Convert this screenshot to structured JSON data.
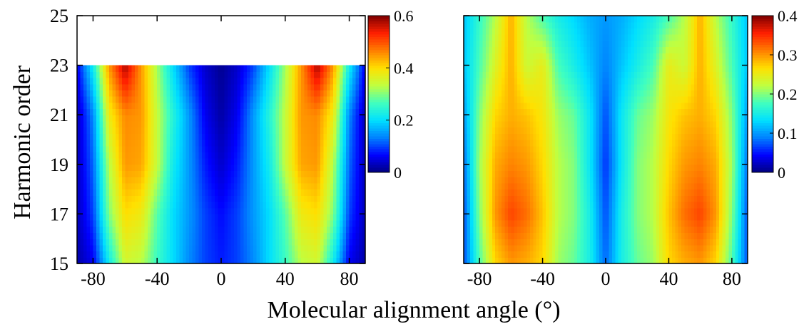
{
  "figure": {
    "ylabel": "Harmonic order",
    "xlabel": "Molecular alignment angle (°)"
  },
  "chart_data": [
    {
      "type": "heatmap",
      "panel": "left",
      "x": [
        -90,
        90
      ],
      "y": [
        15,
        25
      ],
      "xticks": [
        "-80",
        "-40",
        "0",
        "40",
        "80"
      ],
      "yticks": [
        "15",
        "17",
        "19",
        "21",
        "23",
        "25"
      ],
      "data_range_y": [
        15,
        23
      ],
      "colorbar": {
        "ticks": [
          "0",
          "0.2",
          "0.4",
          "0.6"
        ],
        "range": [
          0,
          0.6
        ]
      },
      "colormap": [
        "#00007f",
        "#0000ff",
        "#0080ff",
        "#00e0ff",
        "#40ffbf",
        "#c0ff40",
        "#ffe000",
        "#ff8000",
        "#ff2000",
        "#800000"
      ],
      "profiles": [
        {
          "harmonic": 15,
          "angles": [
            -90,
            -80,
            -70,
            -60,
            -50,
            -40,
            -30,
            -20,
            -10,
            0,
            10,
            20,
            30,
            40,
            50,
            60,
            70,
            80,
            90
          ],
          "values": [
            0.02,
            0.06,
            0.22,
            0.35,
            0.33,
            0.26,
            0.2,
            0.14,
            0.1,
            0.08,
            0.1,
            0.14,
            0.2,
            0.26,
            0.33,
            0.35,
            0.22,
            0.06,
            0.02
          ]
        },
        {
          "harmonic": 17,
          "angles": [
            -90,
            -80,
            -70,
            -60,
            -50,
            -40,
            -30,
            -20,
            -10,
            0,
            10,
            20,
            30,
            40,
            50,
            60,
            70,
            80,
            90
          ],
          "values": [
            0.03,
            0.1,
            0.3,
            0.4,
            0.38,
            0.28,
            0.2,
            0.15,
            0.1,
            0.07,
            0.1,
            0.15,
            0.2,
            0.28,
            0.38,
            0.4,
            0.3,
            0.1,
            0.03
          ]
        },
        {
          "harmonic": 19,
          "angles": [
            -90,
            -80,
            -70,
            -60,
            -50,
            -40,
            -30,
            -20,
            -10,
            0,
            10,
            20,
            30,
            40,
            50,
            60,
            70,
            80,
            90
          ],
          "values": [
            0.03,
            0.12,
            0.33,
            0.45,
            0.44,
            0.34,
            0.22,
            0.15,
            0.08,
            0.04,
            0.08,
            0.15,
            0.22,
            0.34,
            0.44,
            0.45,
            0.33,
            0.12,
            0.03
          ]
        },
        {
          "harmonic": 21,
          "angles": [
            -90,
            -80,
            -70,
            -60,
            -50,
            -40,
            -30,
            -20,
            -10,
            0,
            10,
            20,
            30,
            40,
            50,
            60,
            70,
            80,
            90
          ],
          "values": [
            0.03,
            0.14,
            0.38,
            0.46,
            0.45,
            0.34,
            0.24,
            0.15,
            0.06,
            0.02,
            0.06,
            0.15,
            0.24,
            0.34,
            0.45,
            0.46,
            0.38,
            0.14,
            0.03
          ]
        },
        {
          "harmonic": 23,
          "angles": [
            -90,
            -80,
            -70,
            -60,
            -50,
            -40,
            -30,
            -20,
            -10,
            0,
            10,
            20,
            30,
            40,
            50,
            60,
            70,
            80,
            90
          ],
          "values": [
            0.06,
            0.22,
            0.45,
            0.58,
            0.45,
            0.32,
            0.2,
            0.1,
            0.04,
            0.01,
            0.04,
            0.1,
            0.2,
            0.32,
            0.45,
            0.58,
            0.45,
            0.22,
            0.06
          ]
        }
      ]
    },
    {
      "type": "heatmap",
      "panel": "right",
      "x": [
        -90,
        90
      ],
      "y": [
        15,
        25
      ],
      "xticks": [
        "-80",
        "-40",
        "0",
        "40",
        "80"
      ],
      "data_range_y": [
        15,
        25
      ],
      "colorbar": {
        "ticks": [
          "0",
          "0.1",
          "0.2",
          "0.3",
          "0.4"
        ],
        "range": [
          0,
          0.4
        ]
      },
      "colormap": [
        "#00007f",
        "#0000ff",
        "#0080ff",
        "#00e0ff",
        "#40ffbf",
        "#c0ff40",
        "#ffe000",
        "#ff8000",
        "#ff2000",
        "#800000"
      ],
      "profiles": [
        {
          "harmonic": 15,
          "angles": [
            -90,
            -80,
            -70,
            -60,
            -50,
            -40,
            -30,
            -20,
            -10,
            0,
            10,
            20,
            30,
            40,
            50,
            60,
            70,
            80,
            90
          ],
          "values": [
            0.07,
            0.18,
            0.27,
            0.3,
            0.29,
            0.27,
            0.21,
            0.19,
            0.15,
            0.08,
            0.15,
            0.19,
            0.21,
            0.27,
            0.29,
            0.3,
            0.27,
            0.18,
            0.07
          ]
        },
        {
          "harmonic": 17,
          "angles": [
            -90,
            -80,
            -70,
            -60,
            -50,
            -40,
            -30,
            -20,
            -10,
            0,
            10,
            20,
            30,
            40,
            50,
            60,
            70,
            80,
            90
          ],
          "values": [
            0.07,
            0.2,
            0.3,
            0.34,
            0.32,
            0.28,
            0.22,
            0.2,
            0.15,
            0.07,
            0.15,
            0.2,
            0.22,
            0.28,
            0.32,
            0.34,
            0.3,
            0.2,
            0.07
          ]
        },
        {
          "harmonic": 19,
          "angles": [
            -90,
            -80,
            -70,
            -60,
            -50,
            -40,
            -30,
            -20,
            -10,
            0,
            10,
            20,
            30,
            40,
            50,
            60,
            70,
            80,
            90
          ],
          "values": [
            0.08,
            0.21,
            0.29,
            0.31,
            0.3,
            0.27,
            0.22,
            0.2,
            0.14,
            0.06,
            0.14,
            0.2,
            0.22,
            0.27,
            0.3,
            0.31,
            0.29,
            0.21,
            0.08
          ]
        },
        {
          "harmonic": 21,
          "angles": [
            -90,
            -80,
            -70,
            -60,
            -50,
            -40,
            -30,
            -20,
            -10,
            0,
            10,
            20,
            30,
            40,
            50,
            60,
            70,
            80,
            90
          ],
          "values": [
            0.1,
            0.2,
            0.27,
            0.29,
            0.28,
            0.26,
            0.21,
            0.19,
            0.14,
            0.07,
            0.14,
            0.19,
            0.21,
            0.26,
            0.28,
            0.29,
            0.27,
            0.2,
            0.1
          ]
        },
        {
          "harmonic": 23,
          "angles": [
            -90,
            -80,
            -70,
            -60,
            -50,
            -40,
            -30,
            -20,
            -10,
            0,
            10,
            20,
            30,
            40,
            50,
            60,
            70,
            80,
            90
          ],
          "values": [
            0.12,
            0.18,
            0.24,
            0.29,
            0.23,
            0.25,
            0.18,
            0.15,
            0.12,
            0.09,
            0.12,
            0.15,
            0.18,
            0.25,
            0.23,
            0.29,
            0.24,
            0.18,
            0.12
          ]
        },
        {
          "harmonic": 25,
          "angles": [
            -90,
            -80,
            -70,
            -60,
            -50,
            -40,
            -30,
            -20,
            -10,
            0,
            10,
            20,
            30,
            40,
            50,
            60,
            70,
            80,
            90
          ],
          "values": [
            0.12,
            0.17,
            0.22,
            0.29,
            0.22,
            0.18,
            0.15,
            0.13,
            0.11,
            0.1,
            0.11,
            0.13,
            0.15,
            0.18,
            0.22,
            0.29,
            0.22,
            0.17,
            0.12
          ]
        }
      ]
    }
  ]
}
